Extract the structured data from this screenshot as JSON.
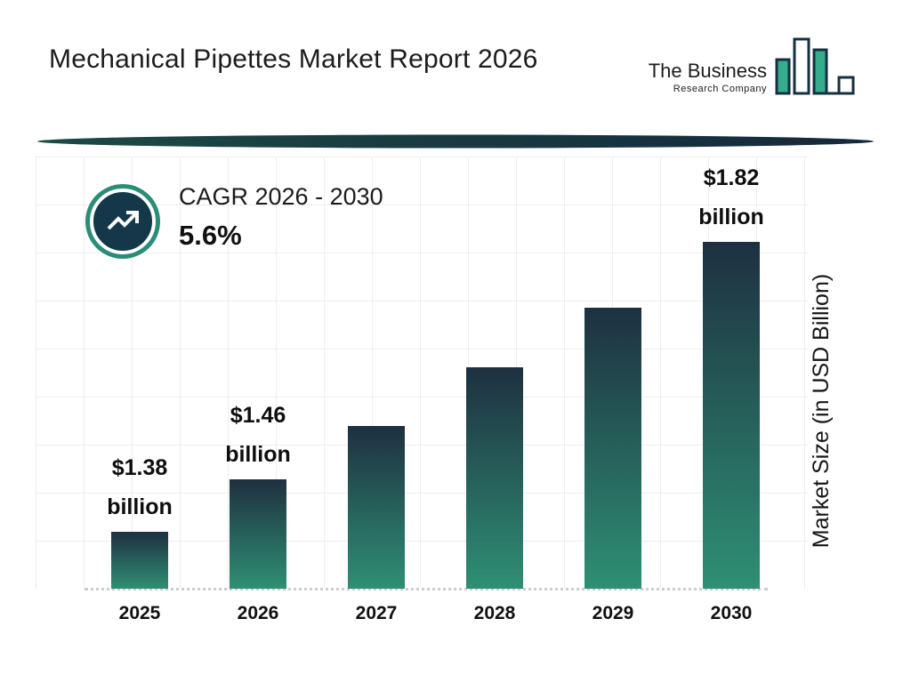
{
  "header": {
    "title": "Mechanical Pipettes Market Report 2026",
    "logo": {
      "line1": "The Business",
      "line2": "Research Company"
    }
  },
  "cagr": {
    "label": "CAGR 2026 - 2030",
    "value": "5.6%"
  },
  "chart_data": {
    "type": "bar",
    "title": "Mechanical Pipettes Market Report 2026",
    "categories": [
      "2025",
      "2026",
      "2027",
      "2028",
      "2029",
      "2030"
    ],
    "values": [
      1.38,
      1.46,
      1.54,
      1.63,
      1.72,
      1.82
    ],
    "bar_labels": [
      [
        "$1.38",
        "billion"
      ],
      [
        "$1.46",
        "billion"
      ],
      null,
      null,
      null,
      [
        "$1.82",
        "billion"
      ]
    ],
    "ylabel": "Market Size (in USD Billion)",
    "xlabel": "",
    "ylim": [
      1.3,
      1.9
    ],
    "grid": true,
    "legend": "none",
    "colors": {
      "bar_top": "#1e3040",
      "bar_bottom": "#2f8f74",
      "accent_teal": "#2a8d77",
      "circle_navy": "#14384a",
      "grid": "#ededed"
    }
  }
}
